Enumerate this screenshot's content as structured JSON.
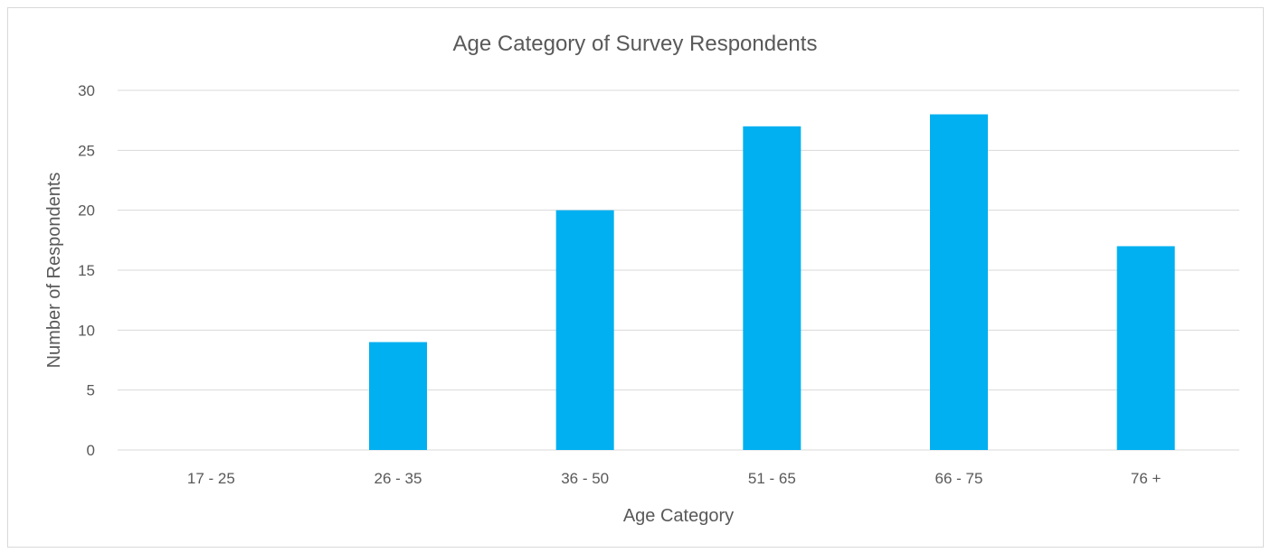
{
  "chart_data": {
    "type": "bar",
    "title": "Age Category of Survey Respondents",
    "xlabel": "Age Category",
    "ylabel": "Number of Respondents",
    "categories": [
      "17 - 25",
      "26 - 35",
      "36 - 50",
      "51 - 65",
      "66 - 75",
      "76 +"
    ],
    "values": [
      0,
      9,
      20,
      27,
      28,
      17
    ],
    "ylim": [
      0,
      30
    ],
    "yticks": [
      "0",
      "5",
      "10",
      "15",
      "20",
      "25",
      "30"
    ],
    "grid": true,
    "legend": "none",
    "bar_color": "#00B0F0"
  }
}
